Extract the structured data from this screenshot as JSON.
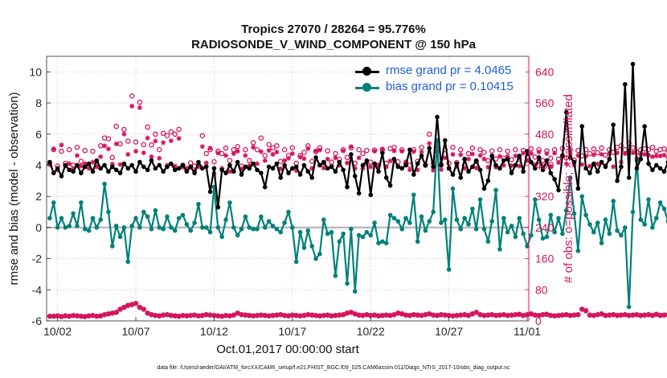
{
  "title_line1": "Tropics 27070 / 28264 = 95.776%",
  "title_line2": "RADIOSONDE_V_WIND_COMPONENT @ 150 hPa",
  "xlabel": "Oct.01,2017 00:00:00 start",
  "ylabel_left": "rmse and bias (model - observation)",
  "ylabel_right": "# of obs: o=possible; ×=assimilated",
  "footer": "data file: /Users/raeder/DAI/ATM_forcXX/CAM6_setup/f.e21.FHIST_BGC.f09_025.CAM6assim.011/Diags_NTrS_2017-10/obs_diag_output.nc",
  "legend": {
    "rmse_label": "rmse grand pr = 4.0465",
    "bias_label": "bias grand pr = 0.10415"
  },
  "colors": {
    "rmse": "#000000",
    "bias": "#00807A",
    "obs": "#D4145A",
    "right_axis": "#D4145A",
    "zero_line": "#B8B8B8",
    "legend_text": "#1F5FD6"
  },
  "chart_data": {
    "type": "line",
    "x_unit": "days since Oct.01,2017 00:00",
    "x_start": 0.5,
    "x_step": 0.25,
    "xlim": [
      0.3,
      31.1
    ],
    "xticks": [
      1,
      6,
      11,
      16,
      21,
      26,
      31
    ],
    "xtick_labels": [
      "10/02",
      "10/07",
      "10/12",
      "10/17",
      "10/22",
      "10/27",
      "11/01"
    ],
    "ylim": [
      -6,
      11
    ],
    "yticks": [
      -6,
      -4,
      -2,
      0,
      2,
      4,
      6,
      8,
      10
    ],
    "y2lim": [
      0,
      680
    ],
    "y2ticks": [
      0,
      80,
      160,
      240,
      320,
      400,
      480,
      560,
      640
    ],
    "series": [
      {
        "name": "rmse",
        "axis": "left",
        "values": [
          4.2,
          3.5,
          3.8,
          3.3,
          4.0,
          3.7,
          3.6,
          4.0,
          3.5,
          3.9,
          4.1,
          3.6,
          4.3,
          3.8,
          4.0,
          3.6,
          3.9,
          3.7,
          3.5,
          4.1,
          3.8,
          4.0,
          3.6,
          4.2,
          3.9,
          3.7,
          4.3,
          3.8,
          4.0,
          3.6,
          3.9,
          4.1,
          3.7,
          3.8,
          4.0,
          3.6,
          3.9,
          3.5,
          4.2,
          3.8,
          3.9,
          2.3,
          3.8,
          1.3,
          3.7,
          3.5,
          4.0,
          3.6,
          4.2,
          3.4,
          3.9,
          3.8,
          4.1,
          3.7,
          3.5,
          2.6,
          3.9,
          3.8,
          4.1,
          3.2,
          4.0,
          3.5,
          3.8,
          3.9,
          3.4,
          4.0,
          3.6,
          3.2,
          4.5,
          4.0,
          4.2,
          3.8,
          3.9,
          3.6,
          4.2,
          3.7,
          2.6,
          4.7,
          3.3,
          2.2,
          4.0,
          4.3,
          2.1,
          4.1,
          3.6,
          4.8,
          3.2,
          2.7,
          4.4,
          3.9,
          3.8,
          4.0,
          5.0,
          3.4,
          4.1,
          4.6,
          4.0,
          5.1,
          3.9,
          7.1,
          4.0,
          5.6,
          3.8,
          3.4,
          4.1,
          3.2,
          4.4,
          3.6,
          3.9,
          4.3,
          3.7,
          2.5,
          3.0,
          4.6,
          4.0,
          3.8,
          4.3,
          4.4,
          3.5,
          4.0,
          4.6,
          3.6,
          4.9,
          4.2,
          3.8,
          4.5,
          3.7,
          4.3,
          3.5,
          3.1,
          2.4,
          4.6,
          7.4,
          4.5,
          4.2,
          2.5,
          6.5,
          3.8,
          3.5,
          4.1,
          3.6,
          4.2,
          3.9,
          4.4,
          6.6,
          3.0,
          3.9,
          9.2,
          3.2,
          10.5,
          3.8,
          4.4,
          6.5,
          4.1,
          3.7,
          4.0,
          3.8,
          3.6,
          4.2,
          3.9,
          4.1,
          3.8,
          3.5,
          4.0,
          3.6,
          4.3,
          3.9,
          3.5,
          3.8,
          3.9,
          3.6,
          3.7,
          4.1,
          4.6,
          3.7,
          4.0,
          3.9,
          5.3,
          3.8,
          4.6,
          3.7,
          4.0,
          4.8,
          3.5,
          4.2,
          3.8,
          5.0,
          4.0,
          3.6,
          4.9,
          3.8,
          4.2,
          3.3,
          3.7,
          4.0,
          3.5,
          4.7,
          3.9,
          5.5,
          4.5,
          4.0,
          5.6,
          3.9,
          5.3,
          4.2,
          4.8,
          4.0,
          4.5,
          5.0,
          4.1,
          5.4,
          4.0,
          4.5,
          5.0,
          3.9,
          5.2,
          4.5,
          4.8,
          4.1,
          3.8,
          4.4,
          4.2
        ]
      },
      {
        "name": "bias",
        "axis": "left",
        "values": [
          0.6,
          1.6,
          0.0,
          0.6,
          0.0,
          0.1,
          0.9,
          0.1,
          1.6,
          -0.1,
          -0.2,
          0.6,
          0.0,
          0.5,
          2.8,
          1.0,
          -1.2,
          0.1,
          -0.6,
          0.0,
          -2.2,
          0.1,
          0.6,
          0.0,
          1.0,
          0.7,
          -0.1,
          1.1,
          0.0,
          -0.1,
          0.7,
          0.0,
          -0.2,
          0.6,
          0.8,
          0.2,
          -0.2,
          0.3,
          1.5,
          0.0,
          0.0,
          -0.3,
          2.6,
          0.0,
          -0.6,
          0.5,
          1.6,
          0.0,
          -0.5,
          -0.1,
          0.7,
          0.0,
          -0.1,
          -0.1,
          0.7,
          0.0,
          0.4,
          0.1,
          -0.1,
          -0.3,
          0.3,
          1.0,
          0.0,
          -2.2,
          -0.3,
          -1.3,
          -0.2,
          -1.2,
          -2.0,
          -1.7,
          0.5,
          -0.4,
          -0.3,
          -3.1,
          -0.9,
          -0.4,
          -3.6,
          -0.1,
          -4.1,
          -0.5,
          -0.6,
          -0.3,
          -0.5,
          0.3,
          -1.0,
          -0.9,
          -1.0,
          0.8,
          0.6,
          0.4,
          -0.1,
          0.6,
          0.3,
          2.1,
          -0.9,
          0.7,
          -0.2,
          0.4,
          1.0,
          5.6,
          0.3,
          0.5,
          -2.7,
          2.5,
          0.5,
          -0.1,
          0.6,
          0.2,
          1.2,
          -0.1,
          1.8,
          -0.1,
          -0.9,
          0.4,
          2.4,
          -1.4,
          0.6,
          -0.3,
          0.1,
          -0.6,
          0.6,
          -0.4,
          -1.2,
          -0.5,
          1.8,
          0.5,
          -0.7,
          -0.6,
          0.8,
          -0.3,
          0.6,
          -0.4,
          1.1,
          3.2,
          0.9,
          -1.5,
          2.0,
          0.8,
          0.2,
          -0.3,
          0.3,
          -1.0,
          0.5,
          -0.4,
          1.7,
          -0.2,
          -0.5,
          0.0,
          -5.1,
          1.0,
          4.3,
          0.5,
          0.2,
          1.8,
          0.0,
          0.6,
          1.6,
          1.2,
          0.4,
          0.9,
          -0.1,
          -0.1,
          -0.6,
          -0.2,
          0.3,
          -0.3,
          1.0,
          0.0,
          0.6,
          1.0,
          -0.4,
          2.5,
          -0.6,
          2.5,
          -0.6,
          1.0,
          -0.3,
          2.3,
          -0.8,
          -0.1,
          0.4,
          0.5,
          2.4,
          0.8,
          0.0,
          -0.6,
          0.0,
          -0.4,
          0.7,
          -0.2,
          0.6,
          -0.1,
          0.2,
          0.8,
          -0.5,
          -0.8,
          -3.5,
          0.0,
          0.5,
          -1.3,
          0.7,
          -0.3,
          0.4,
          0.2,
          -0.1,
          1.0,
          2.8,
          0.0,
          0.5,
          0.8,
          0.5,
          2.5,
          1.0,
          0.6,
          0.5,
          1.2,
          0.0,
          0.0,
          -1.6
        ]
      },
      {
        "name": "obs possible",
        "axis": "right",
        "values": [
          402,
          440,
          398,
          436,
          405,
          440,
          400,
          446,
          410,
          438,
          395,
          436,
          405,
          450,
          470,
          468,
          420,
          500,
          455,
          492,
          462,
          578,
          460,
          562,
          453,
          498,
          452,
          480,
          440,
          482,
          476,
          486,
          480,
          492,
          400,
          390,
          406,
          398,
          400,
          476,
          430,
          440,
          409,
          436,
          430,
          444,
          412,
          440,
          448,
          398,
          440,
          412,
          458,
          440,
          470,
          425,
          453,
          445,
          450,
          410,
          440,
          425,
          445,
          405,
          425,
          433,
          450,
          410,
          435,
          445,
          406,
          437,
          408,
          430,
          415,
          440,
          420,
          445,
          405,
          440,
          430,
          438,
          408,
          439,
          400,
          440,
          405,
          443,
          446,
          409,
          440,
          406,
          400,
          440,
          410,
          446,
          401,
          480,
          405,
          443,
          402,
          440,
          405,
          446,
          407,
          440,
          400,
          430,
          444,
          410,
          440,
          433,
          412,
          437,
          416,
          440,
          418,
          436,
          414,
          440,
          415,
          438,
          420,
          442,
          421,
          440,
          412,
          437,
          418,
          440,
          416,
          443,
          419,
          440,
          413,
          438,
          424,
          440,
          430,
          442,
          432,
          444,
          426,
          440,
          433,
          446,
          450,
          440,
          456,
          445,
          434,
          440,
          442,
          440,
          446,
          436,
          440,
          442,
          438,
          440,
          444,
          440,
          436,
          442,
          441,
          446,
          439,
          440,
          437,
          443,
          440,
          438,
          435,
          441,
          438,
          443,
          440,
          445,
          443,
          440,
          445,
          442,
          444,
          440,
          447,
          441,
          440,
          443,
          440,
          441,
          444,
          447,
          440,
          444,
          443,
          440,
          441,
          446,
          444,
          448,
          450,
          446,
          452,
          449,
          455,
          447,
          462,
          456,
          460,
          466,
          458,
          458,
          461,
          462,
          460,
          468,
          462,
          455,
          470,
          466
        ]
      },
      {
        "name": "obs assimilated",
        "axis": "right",
        "values": [
          405,
          442,
          388,
          452,
          398,
          404,
          392,
          425,
          398,
          404,
          392,
          408,
          396,
          422,
          450,
          442,
          403,
          455,
          402,
          480,
          428,
          552,
          436,
          548,
          432,
          470,
          422,
          462,
          418,
          458,
          400,
          463,
          398,
          469,
          395,
          392,
          395,
          385,
          396,
          448,
          406,
          444,
          378,
          431,
          392,
          425,
          384,
          430,
          436,
          391,
          425,
          399,
          446,
          404,
          435,
          412,
          438,
          428,
          434,
          391,
          412,
          418,
          430,
          386,
          421,
          417,
          443,
          392,
          437,
          439,
          393,
          416,
          398,
          419,
          400,
          437,
          406,
          448,
          392,
          419,
          392,
          405,
          396,
          436,
          400,
          442,
          396,
          411,
          437,
          398,
          436,
          409,
          388,
          435,
          388,
          434,
          399,
          456,
          387,
          436,
          389,
          419,
          392,
          428,
          397,
          427,
          392,
          416,
          429,
          393,
          425,
          416,
          395,
          424,
          395,
          423,
          400,
          423,
          399,
          424,
          398,
          431,
          412,
          430,
          402,
          434,
          397,
          430,
          397,
          431,
          407,
          426,
          404,
          429,
          400,
          425,
          402,
          423,
          398,
          427,
          403,
          428,
          399,
          430,
          396,
          432,
          408,
          430,
          436,
          432,
          418,
          428,
          428,
          426,
          422,
          424,
          424,
          426,
          420,
          424,
          426,
          428,
          420,
          430,
          424,
          432,
          422,
          430,
          420,
          430,
          425,
          426,
          420,
          430,
          423,
          432,
          426,
          433,
          428,
          430,
          432,
          430,
          431,
          426,
          434,
          428,
          430,
          432,
          428,
          430,
          432,
          434,
          428,
          432,
          430,
          426,
          428,
          432,
          430,
          434,
          436,
          432,
          438,
          436,
          440,
          434,
          446,
          442,
          444,
          450,
          444,
          442,
          446,
          448,
          444,
          452,
          446,
          440,
          454,
          450
        ]
      },
      {
        "name": "obs near zero possible",
        "axis": "right",
        "values": [
          12,
          12,
          13,
          11,
          13,
          12,
          14,
          13,
          12,
          11,
          13,
          14,
          12,
          13,
          16,
          18,
          20,
          22,
          30,
          35,
          40,
          42,
          45,
          35,
          30,
          20,
          16,
          14,
          13,
          15,
          16,
          14,
          13,
          12,
          14,
          13,
          14,
          15,
          13,
          14,
          16,
          15,
          14,
          13,
          12,
          14,
          13,
          15,
          20,
          16,
          15,
          14,
          13,
          14,
          15,
          14,
          13,
          14,
          15,
          16,
          14,
          13,
          15,
          14,
          13,
          14,
          16,
          15,
          14,
          13,
          14,
          15,
          13,
          14,
          15,
          16,
          20,
          22,
          18,
          15,
          14,
          16,
          14,
          15,
          13,
          14,
          15,
          14,
          16,
          20,
          18,
          15,
          14,
          16,
          15,
          14,
          16,
          18,
          15,
          14,
          16,
          15,
          14,
          13,
          14,
          15,
          16,
          14,
          18,
          22,
          16,
          14,
          15,
          16,
          14,
          15,
          16,
          14,
          15,
          16,
          17,
          14,
          16,
          18,
          15,
          14,
          16,
          17,
          14,
          13,
          14,
          15,
          16,
          14,
          15,
          16,
          30,
          26,
          15,
          14,
          16,
          18,
          14,
          15,
          16,
          14,
          15,
          16,
          14,
          15,
          16,
          14,
          15,
          16,
          14,
          17,
          14,
          15,
          16,
          14,
          15,
          16,
          14,
          15,
          16,
          14,
          15,
          16,
          14,
          15,
          16,
          14,
          15,
          16,
          14,
          15,
          16,
          14,
          15,
          16,
          14,
          15,
          16,
          14,
          15,
          16,
          14,
          15,
          16,
          14,
          15,
          16,
          14,
          15,
          16,
          14,
          15,
          16,
          14,
          15,
          16,
          14,
          15,
          16,
          14,
          15,
          16,
          14,
          20,
          12,
          14,
          15,
          16,
          10,
          4,
          6
        ]
      }
    ]
  }
}
